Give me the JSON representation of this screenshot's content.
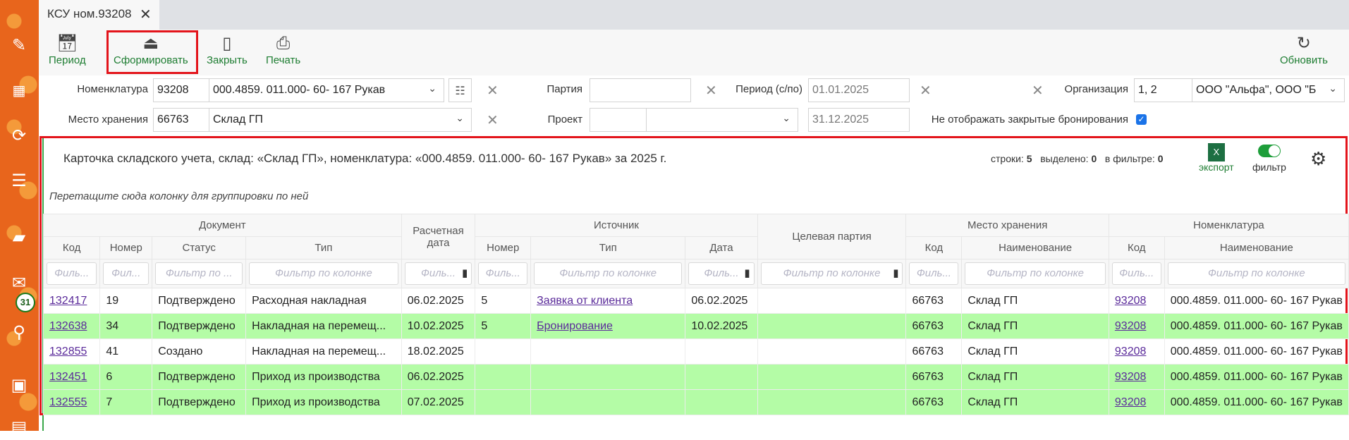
{
  "tab": {
    "title": "КСУ ном.93208"
  },
  "sidebar": {
    "icons": [
      "pencil-icon",
      "qr-code-icon",
      "sync-icon",
      "inbox-download-icon",
      "folder-icon",
      "mail-icon",
      "search-icon",
      "calendar-icon",
      "grid-icon"
    ],
    "mail_badge": "31"
  },
  "toolbar": {
    "period": "Период",
    "generate": "Сформировать",
    "close": "Закрыть",
    "print": "Печать",
    "refresh": "Обновить"
  },
  "filters": {
    "nomenclature_label": "Номенклатура",
    "nomenclature_code": "93208",
    "nomenclature_name": "000.4859. 011.000- 60- 167 Рукав",
    "storage_label": "Место хранения",
    "storage_code": "66763",
    "storage_name": "Склад ГП",
    "batch_label": "Партия",
    "batch_value": "",
    "project_label": "Проект",
    "project_code": "",
    "project_name": "",
    "period_label": "Период (с/по)",
    "period_from": "01.01.2025",
    "period_to": "31.12.2025",
    "org_label": "Организация",
    "org_codes": "1, 2",
    "org_names": "ООО \"Альфа\", ООО \"Б",
    "hide_closed_label": "Не отображать закрытые бронирования",
    "hide_closed_checked": true
  },
  "grid": {
    "title": "Карточка складского учета, склад: «Склад ГП», номенклатура: «000.4859. 011.000- 60- 167 Рукав» за 2025 г.",
    "rows_label": "строки:",
    "rows": "5",
    "selected_label": "выделено:",
    "selected": "0",
    "infilter_label": "в фильтре:",
    "infilter": "0",
    "export": "экспорт",
    "filter": "фильтр",
    "filter_toggle_on": true,
    "group_hint": "Перетащите сюда колонку для группировки по ней",
    "groups": {
      "document": "Документ",
      "calc_date": "Расчетная дата",
      "source": "Источник",
      "target_batch": "Целевая партия",
      "storage": "Место хранения",
      "nomenclature": "Номенклатура"
    },
    "columns": [
      "Код",
      "Номер",
      "Статус",
      "Тип",
      "Номер",
      "Тип",
      "Дата",
      "Код",
      "Наименование",
      "Код",
      "Наименование"
    ],
    "filter_placeholders": [
      "Филь...",
      "Фил...",
      "Фильтр по ...",
      "Фильтр по колонке",
      "Филь...",
      "Филь...",
      "Фильтр по колонке",
      "Филь...",
      "Фильтр по колонке",
      "Филь...",
      "Фильтр по колонке",
      "Филь...",
      "Фильтр по колонке"
    ],
    "highlight_color": "#b4fca6",
    "rows_data": [
      {
        "code": "132417",
        "num": "19",
        "status": "Подтверждено",
        "type": "Расходная накладная",
        "calc": "06.02.2025",
        "snum": "5",
        "stype": "Заявка от клиента",
        "sdate": "06.02.2025",
        "target": "",
        "scode": "66763",
        "sname": "Склад ГП",
        "ncode": "93208",
        "nname": "000.4859. 011.000- 60- 167 Рукав",
        "hl": false
      },
      {
        "code": "132638",
        "num": "34",
        "status": "Подтверждено",
        "type": "Накладная на перемещ...",
        "calc": "10.02.2025",
        "snum": "5",
        "stype": "Бронирование",
        "sdate": "10.02.2025",
        "target": "",
        "scode": "66763",
        "sname": "Склад ГП",
        "ncode": "93208",
        "nname": "000.4859. 011.000- 60- 167 Рукав",
        "hl": true
      },
      {
        "code": "132855",
        "num": "41",
        "status": "Создано",
        "type": "Накладная на перемещ...",
        "calc": "18.02.2025",
        "snum": "",
        "stype": "",
        "sdate": "",
        "target": "",
        "scode": "66763",
        "sname": "Склад ГП",
        "ncode": "93208",
        "nname": "000.4859. 011.000- 60- 167 Рукав",
        "hl": false
      },
      {
        "code": "132451",
        "num": "6",
        "status": "Подтверждено",
        "type": "Приход из производства",
        "calc": "06.02.2025",
        "snum": "",
        "stype": "",
        "sdate": "",
        "target": "",
        "scode": "66763",
        "sname": "Склад ГП",
        "ncode": "93208",
        "nname": "000.4859. 011.000- 60- 167 Рукав",
        "hl": true
      },
      {
        "code": "132555",
        "num": "7",
        "status": "Подтверждено",
        "type": "Приход из производства",
        "calc": "07.02.2025",
        "snum": "",
        "stype": "",
        "sdate": "",
        "target": "",
        "scode": "66763",
        "sname": "Склад ГП",
        "ncode": "93208",
        "nname": "000.4859. 011.000- 60- 167 Рукав",
        "hl": true
      }
    ]
  }
}
